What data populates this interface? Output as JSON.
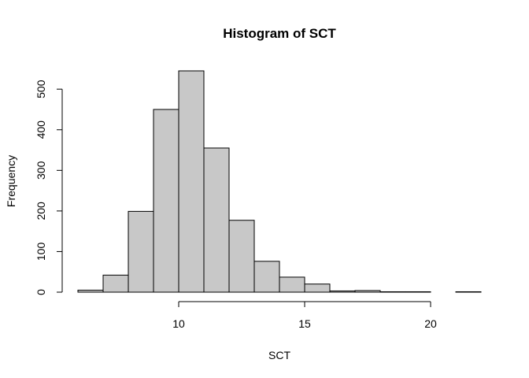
{
  "chart_data": {
    "type": "bar",
    "title": "Histogram of SCT",
    "xlabel": "SCT",
    "ylabel": "Frequency",
    "bins": [
      {
        "x0": 6,
        "x1": 7,
        "count": 5
      },
      {
        "x0": 7,
        "x1": 8,
        "count": 42
      },
      {
        "x0": 8,
        "x1": 9,
        "count": 199
      },
      {
        "x0": 9,
        "x1": 10,
        "count": 450
      },
      {
        "x0": 10,
        "x1": 11,
        "count": 545
      },
      {
        "x0": 11,
        "x1": 12,
        "count": 355
      },
      {
        "x0": 12,
        "x1": 13,
        "count": 177
      },
      {
        "x0": 13,
        "x1": 14,
        "count": 76
      },
      {
        "x0": 14,
        "x1": 15,
        "count": 37
      },
      {
        "x0": 15,
        "x1": 16,
        "count": 20
      },
      {
        "x0": 16,
        "x1": 17,
        "count": 3
      },
      {
        "x0": 17,
        "x1": 18,
        "count": 4
      },
      {
        "x0": 18,
        "x1": 19,
        "count": 1
      },
      {
        "x0": 19,
        "x1": 20,
        "count": 1
      },
      {
        "x0": 20,
        "x1": 21,
        "count": 0
      },
      {
        "x0": 21,
        "x1": 22,
        "count": 1
      }
    ],
    "xlim": [
      6,
      22
    ],
    "ylim": [
      0,
      545
    ],
    "xticks": [
      10,
      15,
      20
    ],
    "yticks": [
      0,
      100,
      200,
      300,
      400,
      500
    ],
    "bar_color": "#c8c8c8",
    "grid": false,
    "legend": "none"
  }
}
